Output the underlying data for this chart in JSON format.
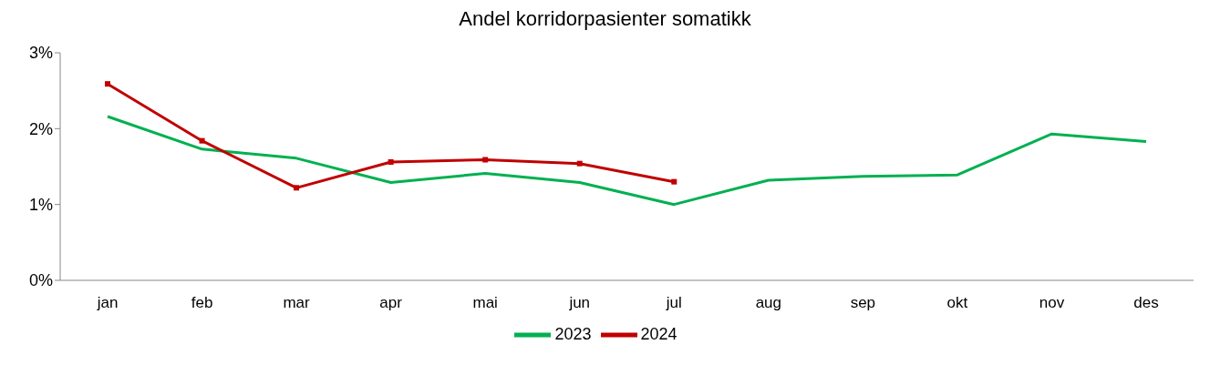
{
  "chart_data": {
    "type": "line",
    "title": "Andel korridorpasienter somatikk",
    "categories": [
      "jan",
      "feb",
      "mar",
      "apr",
      "mai",
      "jun",
      "jul",
      "aug",
      "sep",
      "okt",
      "nov",
      "des"
    ],
    "series": [
      {
        "name": "2023",
        "color": "#00b050",
        "marker": "none",
        "values": [
          2.16,
          1.73,
          1.61,
          1.29,
          1.41,
          1.29,
          1.0,
          1.32,
          1.37,
          1.39,
          1.93,
          1.83
        ]
      },
      {
        "name": "2024",
        "color": "#c00000",
        "marker": "square",
        "values": [
          2.59,
          1.84,
          1.22,
          1.56,
          1.59,
          1.54,
          1.3,
          null,
          null,
          null,
          null,
          null
        ]
      }
    ],
    "ylim": [
      0,
      3
    ],
    "yticks": [
      {
        "value": 0,
        "label": "0%"
      },
      {
        "value": 1,
        "label": "1%"
      },
      {
        "value": 2,
        "label": "2%"
      },
      {
        "value": 3,
        "label": "3%"
      }
    ],
    "grid": false,
    "legend": "bottom"
  }
}
